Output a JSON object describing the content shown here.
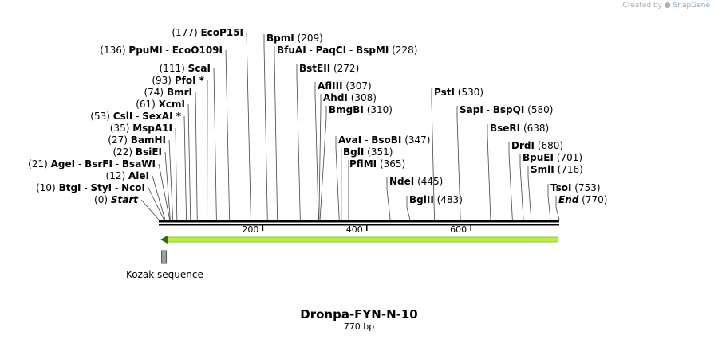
{
  "header": {
    "created_by": "Created by",
    "brand": "SnapGene"
  },
  "construct": {
    "name": "Dronpa-FYN-N-10",
    "length": "770 bp",
    "length_bp": 770
  },
  "axis": {
    "ticks": [
      200,
      400,
      600
    ]
  },
  "features": [
    {
      "name": "Kozak sequence",
      "start": 7,
      "end": 13,
      "color": "#9aa0a8"
    },
    {
      "name": "",
      "start": 3,
      "end": 768,
      "direction": "reverse",
      "color": "#b8f04a"
    }
  ],
  "sites": [
    {
      "pos": 0,
      "display": "(0)",
      "names": [
        "Start"
      ],
      "italic": true
    },
    {
      "pos": 10,
      "display": "(10)",
      "names": [
        "BtgI",
        "StyI",
        "NcoI"
      ]
    },
    {
      "pos": 12,
      "display": "(12)",
      "names": [
        "AleI"
      ]
    },
    {
      "pos": 21,
      "display": "(21)",
      "names": [
        "AgeI",
        "BsrFI",
        "BsaWI"
      ]
    },
    {
      "pos": 22,
      "display": "(22)",
      "names": [
        "BsiEI"
      ]
    },
    {
      "pos": 27,
      "display": "(27)",
      "names": [
        "BamHI"
      ]
    },
    {
      "pos": 35,
      "display": "(35)",
      "names": [
        "MspA1I"
      ]
    },
    {
      "pos": 53,
      "display": "(53)",
      "names": [
        "CslI",
        "SexAI *"
      ]
    },
    {
      "pos": 61,
      "display": "(61)",
      "names": [
        "XcmI"
      ]
    },
    {
      "pos": 74,
      "display": "(74)",
      "names": [
        "BmrI"
      ]
    },
    {
      "pos": 93,
      "display": "(93)",
      "names": [
        "PfoI *"
      ]
    },
    {
      "pos": 111,
      "display": "(111)",
      "names": [
        "ScaI"
      ]
    },
    {
      "pos": 136,
      "display": "(136)",
      "names": [
        "PpuMI",
        "EcoO109I"
      ]
    },
    {
      "pos": 177,
      "display": "(177)",
      "names": [
        "EcoP15I"
      ]
    },
    {
      "pos": 209,
      "display": "(209)",
      "names": [
        "BpmI"
      ]
    },
    {
      "pos": 228,
      "display": "(228)",
      "names": [
        "BfuAI",
        "PaqCI",
        "BspMI"
      ]
    },
    {
      "pos": 272,
      "display": "(272)",
      "names": [
        "BstEII"
      ]
    },
    {
      "pos": 307,
      "display": "(307)",
      "names": [
        "AflIII"
      ]
    },
    {
      "pos": 308,
      "display": "(308)",
      "names": [
        "AhdI"
      ]
    },
    {
      "pos": 310,
      "display": "(310)",
      "names": [
        "BmgBI"
      ]
    },
    {
      "pos": 347,
      "display": "(347)",
      "names": [
        "AvaI",
        "BsoBI"
      ]
    },
    {
      "pos": 351,
      "display": "(351)",
      "names": [
        "BglI"
      ]
    },
    {
      "pos": 365,
      "display": "(365)",
      "names": [
        "PflMI"
      ]
    },
    {
      "pos": 445,
      "display": "(445)",
      "names": [
        "NdeI"
      ]
    },
    {
      "pos": 483,
      "display": "(483)",
      "names": [
        "BglII"
      ]
    },
    {
      "pos": 530,
      "display": "(530)",
      "names": [
        "PstI"
      ]
    },
    {
      "pos": 580,
      "display": "(580)",
      "names": [
        "SapI",
        "BspQI"
      ]
    },
    {
      "pos": 638,
      "display": "(638)",
      "names": [
        "BseRI"
      ]
    },
    {
      "pos": 680,
      "display": "(680)",
      "names": [
        "DrdI"
      ]
    },
    {
      "pos": 701,
      "display": "(701)",
      "names": [
        "BpuEI"
      ]
    },
    {
      "pos": 716,
      "display": "(716)",
      "names": [
        "SmlI"
      ]
    },
    {
      "pos": 753,
      "display": "(753)",
      "names": [
        "TsoI"
      ]
    },
    {
      "pos": 770,
      "display": "(770)",
      "names": [
        "End"
      ],
      "italic": true
    }
  ]
}
